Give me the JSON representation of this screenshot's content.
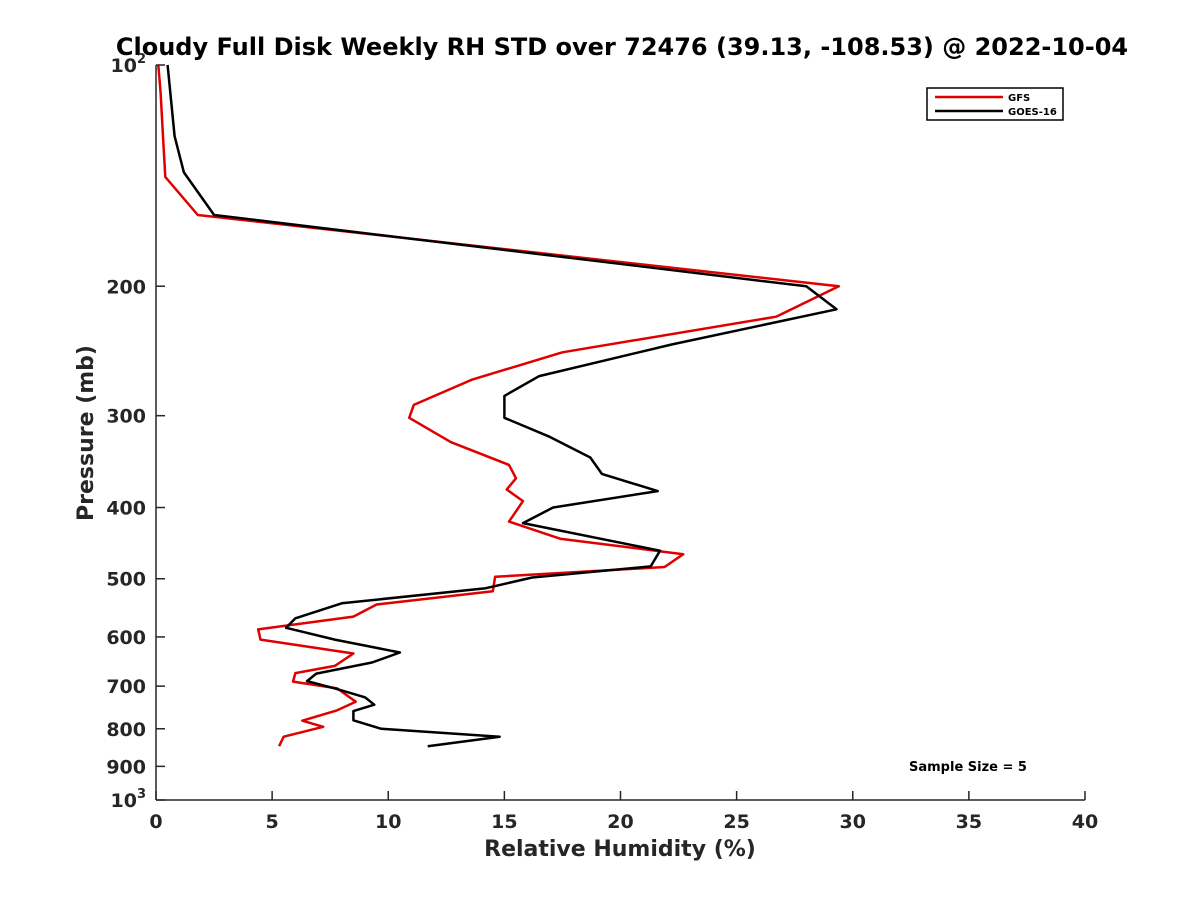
{
  "chart_data": {
    "type": "line",
    "title": "Cloudy Full Disk Weekly RH STD over 72476 (39.13, -108.53) @ 2022-10-04",
    "xlabel": "Relative Humidity (%)",
    "ylabel": "Pressure (mb)",
    "xlim": [
      0,
      40
    ],
    "ylim": [
      100,
      1000
    ],
    "y_scale": "log",
    "y_reversed": true,
    "grid": false,
    "legend_position": "top-right",
    "x_ticks": [
      0,
      5,
      10,
      15,
      20,
      25,
      30,
      35,
      40
    ],
    "y_ticks": [
      {
        "value": 100,
        "base": "10",
        "exp": "2"
      },
      {
        "value": 200,
        "label": "200"
      },
      {
        "value": 300,
        "label": "300"
      },
      {
        "value": 400,
        "label": "400"
      },
      {
        "value": 500,
        "label": "500"
      },
      {
        "value": 600,
        "label": "600"
      },
      {
        "value": 700,
        "label": "700"
      },
      {
        "value": 800,
        "label": "800"
      },
      {
        "value": 900,
        "label": "900"
      },
      {
        "value": 1000,
        "base": "10",
        "exp": "3"
      }
    ],
    "series": [
      {
        "name": "GFS",
        "color": "#e00000",
        "points": [
          [
            0.1,
            100
          ],
          [
            0.2,
            109
          ],
          [
            0.3,
            125
          ],
          [
            0.4,
            142
          ],
          [
            1.8,
            160
          ],
          [
            29.4,
            200
          ],
          [
            26.7,
            220
          ],
          [
            17.5,
            246
          ],
          [
            13.6,
            268
          ],
          [
            11.1,
            290
          ],
          [
            10.9,
            302
          ],
          [
            12.7,
            326
          ],
          [
            15.2,
            350
          ],
          [
            15.5,
            365
          ],
          [
            15.1,
            378
          ],
          [
            15.8,
            392
          ],
          [
            15.2,
            418
          ],
          [
            17.4,
            441
          ],
          [
            22.7,
            463
          ],
          [
            21.9,
            482
          ],
          [
            14.6,
            497
          ],
          [
            14.5,
            520
          ],
          [
            9.5,
            542
          ],
          [
            8.5,
            563
          ],
          [
            4.4,
            586
          ],
          [
            4.5,
            605
          ],
          [
            8.5,
            632
          ],
          [
            7.7,
            657
          ],
          [
            6.0,
            672
          ],
          [
            5.9,
            690
          ],
          [
            7.8,
            705
          ],
          [
            8.6,
            735
          ],
          [
            7.8,
            755
          ],
          [
            6.3,
            780
          ],
          [
            7.2,
            795
          ],
          [
            5.5,
            820
          ],
          [
            5.3,
            845
          ]
        ]
      },
      {
        "name": "GOES-16",
        "color": "#000000",
        "points": [
          [
            0.5,
            100
          ],
          [
            0.8,
            125
          ],
          [
            1.2,
            140
          ],
          [
            2.5,
            160
          ],
          [
            28.0,
            200
          ],
          [
            29.3,
            215
          ],
          [
            22.2,
            240
          ],
          [
            16.5,
            265
          ],
          [
            15.0,
            282
          ],
          [
            15.0,
            302
          ],
          [
            16.9,
            320
          ],
          [
            18.7,
            342
          ],
          [
            19.2,
            360
          ],
          [
            21.6,
            380
          ],
          [
            17.1,
            400
          ],
          [
            15.8,
            420
          ],
          [
            21.7,
            458
          ],
          [
            21.3,
            481
          ],
          [
            16.2,
            498
          ],
          [
            14.2,
            515
          ],
          [
            8.0,
            540
          ],
          [
            6.0,
            566
          ],
          [
            5.6,
            583
          ],
          [
            7.7,
            605
          ],
          [
            10.5,
            630
          ],
          [
            9.3,
            650
          ],
          [
            6.9,
            673
          ],
          [
            6.5,
            689
          ],
          [
            7.7,
            705
          ],
          [
            9.0,
            725
          ],
          [
            9.4,
            742
          ],
          [
            8.5,
            757
          ],
          [
            8.5,
            779
          ],
          [
            9.7,
            800
          ],
          [
            14.8,
            820
          ],
          [
            11.7,
            845
          ]
        ]
      }
    ],
    "annotation": "Sample Size = 5"
  }
}
